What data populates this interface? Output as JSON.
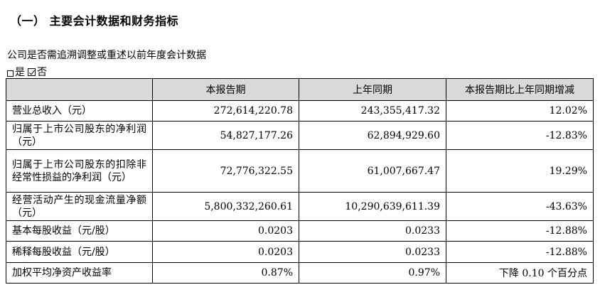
{
  "section": {
    "title": "（一） 主要会计数据和财务指标"
  },
  "question": "公司是否需追溯调整或重述以前年度会计数据",
  "answer": {
    "yes_label": "是",
    "no_label": "否"
  },
  "table": {
    "headers": [
      "",
      "本报告期",
      "上年同期",
      "本报告期比上年同期增减"
    ],
    "rows": [
      {
        "label": "营业总收入（元）",
        "current": "272,614,220.78",
        "prior": "243,355,417.32",
        "change": "12.02%"
      },
      {
        "label": "归属于上市公司股东的净利润（元）",
        "current": "54,827,177.26",
        "prior": "62,894,929.60",
        "change": "-12.83%"
      },
      {
        "label": "归属于上市公司股东的扣除非经常性损益的净利润（元）",
        "current": "72,776,322.55",
        "prior": "61,007,667.47",
        "change": "19.29%"
      },
      {
        "label": "经营活动产生的现金流量净额（元）",
        "current": "5,800,332,260.61",
        "prior": "10,290,639,611.39",
        "change": "-43.63%"
      },
      {
        "label": "基本每股收益（元/股）",
        "current": "0.0203",
        "prior": "0.0233",
        "change": "-12.88%"
      },
      {
        "label": "稀释每股收益（元/股）",
        "current": "0.0203",
        "prior": "0.0233",
        "change": "-12.88%"
      },
      {
        "label": "加权平均净资产收益率",
        "current": "0.87%",
        "prior": "0.97%",
        "change": "下降 0.10 个百分点"
      }
    ]
  }
}
